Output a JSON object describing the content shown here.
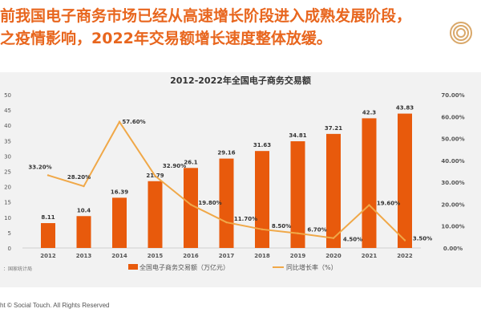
{
  "headline": {
    "line1": "前我国电子商务市场已经从高速增长阶段进入成熟发展阶段，",
    "line2": "之疫情影响，2022年交易额增长速度整体放缓。"
  },
  "footer": "ht © Social Touch. All Rights Reserved",
  "source": "：国家统计局",
  "colors": {
    "accent": "#e8661e",
    "bar": "#e85a0c",
    "line": "#f0a848",
    "panel": "#f2f2f2"
  },
  "chart_data": {
    "type": "bar+line",
    "title": "2012-2022年全国电子商务交易额",
    "categories": [
      "2012",
      "2013",
      "2014",
      "2015",
      "2016",
      "2017",
      "2018",
      "2019",
      "2020",
      "2021",
      "2022"
    ],
    "series": [
      {
        "name": "全国电子商务交易额（万亿元）",
        "type": "bar",
        "axis": "left",
        "values": [
          8.11,
          10.4,
          16.39,
          21.79,
          26.1,
          29.16,
          31.63,
          34.81,
          37.21,
          42.3,
          43.83
        ],
        "labels": [
          "8.11",
          "10.4",
          "16.39",
          "21.79",
          "26.1",
          "29.16",
          "31.63",
          "34.81",
          "37.21",
          "42.3",
          "43.83"
        ]
      },
      {
        "name": "同比增长率（%）",
        "type": "line",
        "axis": "right",
        "values": [
          33.2,
          28.2,
          57.6,
          32.9,
          19.8,
          11.7,
          8.5,
          6.7,
          4.5,
          19.6,
          3.5
        ],
        "labels": [
          "33.20%",
          "28.20%",
          "57.60%",
          "32.90%",
          "19.80%",
          "11.70%",
          "8.50%",
          "6.70%",
          "4.50%",
          "19.60%",
          "3.50%"
        ]
      }
    ],
    "left_axis": {
      "ylim": [
        0,
        50
      ],
      "ticks": [
        "0",
        "5",
        "10",
        "15",
        "20",
        "25",
        "30",
        "35",
        "40",
        "45",
        "50"
      ]
    },
    "right_axis": {
      "ylim": [
        0,
        70
      ],
      "ticks": [
        "0.00%",
        "10.00%",
        "20.00%",
        "30.00%",
        "40.00%",
        "50.00%",
        "60.00%",
        "70.00%"
      ]
    },
    "legend_position": "bottom",
    "grid": false
  }
}
